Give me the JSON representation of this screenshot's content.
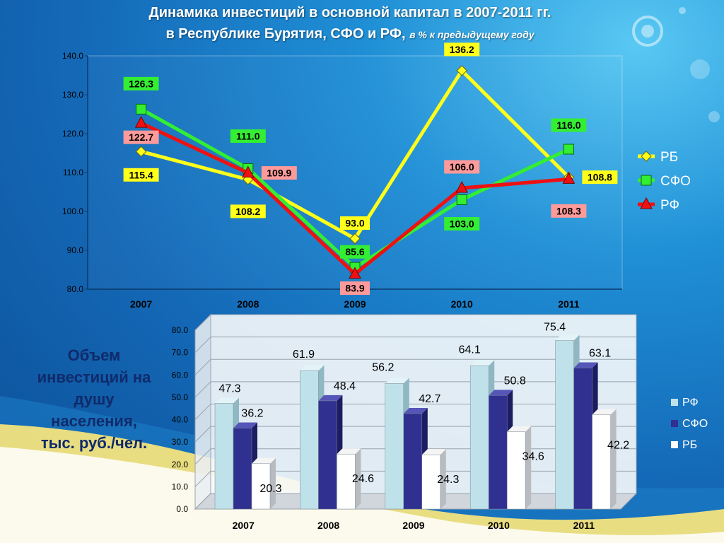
{
  "title": {
    "line1": "Динамика инвестиций в основной капитал в 2007-2011 гг.",
    "line2_main": "в Республике Бурятия, СФО и РФ,",
    "line2_sub": "в % к предыдущему году"
  },
  "side_caption": "Объем инвестиций на душу населения, тыс. руб./чел.",
  "colors": {
    "rb": "#ffff1a",
    "sfo": "#33ee33",
    "rf": "#ee1111",
    "rf_label_bg": "#ff9a9a",
    "bar_rf": "#bfe2ea",
    "bar_sfo": "#303090",
    "bar_rb": "#ffffff"
  },
  "chart_data": [
    {
      "type": "line",
      "categories": [
        "2007",
        "2008",
        "2009",
        "2010",
        "2011"
      ],
      "ylim": [
        80.0,
        140.0
      ],
      "yticks": [
        "80.0",
        "90.0",
        "100.0",
        "110.0",
        "120.0",
        "130.0",
        "140.0"
      ],
      "grid": false,
      "legend_position": "right",
      "series": [
        {
          "name": "РБ",
          "values": [
            115.4,
            108.2,
            93.0,
            136.2,
            108.8
          ],
          "labels": [
            "115.4",
            "108.2",
            "93.0",
            "136.2",
            "108.8"
          ],
          "marker": "diamond"
        },
        {
          "name": "СФО",
          "values": [
            126.3,
            111.0,
            85.6,
            103.0,
            116.0
          ],
          "labels": [
            "126.3",
            "111.0",
            "85.6",
            "103.0",
            "116.0"
          ],
          "marker": "square"
        },
        {
          "name": "РФ",
          "values": [
            122.7,
            109.9,
            83.9,
            106.0,
            108.3
          ],
          "labels": [
            "122.7",
            "109.9",
            "83.9",
            "106.0",
            "108.3"
          ],
          "marker": "triangle"
        }
      ]
    },
    {
      "type": "bar",
      "categories": [
        "2007",
        "2008",
        "2009",
        "2010",
        "2011"
      ],
      "ylim": [
        0.0,
        80.0
      ],
      "yticks": [
        "0.0",
        "10.0",
        "20.0",
        "30.0",
        "40.0",
        "50.0",
        "60.0",
        "70.0",
        "80.0"
      ],
      "grid": true,
      "legend_position": "right",
      "series": [
        {
          "name": "РФ",
          "values": [
            47.3,
            61.9,
            56.2,
            64.1,
            75.4
          ],
          "labels": [
            "47.3",
            "61.9",
            "56.2",
            "64.1",
            "75.4"
          ]
        },
        {
          "name": "СФО",
          "values": [
            36.2,
            48.4,
            42.7,
            50.8,
            63.1
          ],
          "labels": [
            "36.2",
            "48.4",
            "42.7",
            "50.8",
            "63.1"
          ]
        },
        {
          "name": "РБ",
          "values": [
            20.3,
            24.6,
            24.3,
            34.6,
            42.2
          ],
          "labels": [
            "20.3",
            "24.6",
            "24.3",
            "34.6",
            "42.2"
          ]
        }
      ]
    }
  ]
}
